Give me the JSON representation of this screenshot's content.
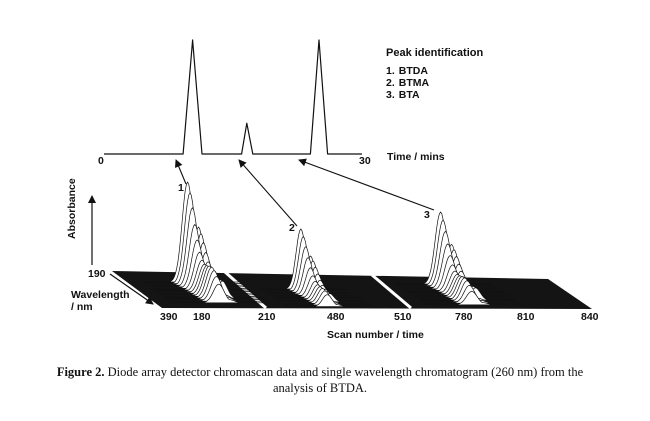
{
  "peak_identification": {
    "heading": "Peak identification",
    "items": [
      {
        "number": "1.",
        "name": "BTDA"
      },
      {
        "number": "2.",
        "name": "BTMA"
      },
      {
        "number": "3.",
        "name": "BTA"
      }
    ]
  },
  "chromatogram": {
    "x_start_label": "0",
    "x_end_label": "30",
    "x_axis_label": "Time / mins"
  },
  "chromascan": {
    "y_axis_label": "Absorbance",
    "wavelength_label_line1": "Wavelength",
    "wavelength_label_line2": "/ nm",
    "wavelength_start": "190",
    "wavelength_end": "390",
    "peak_labels": [
      "1",
      "2",
      "3"
    ],
    "scan_ticks": [
      "180",
      "210",
      "480",
      "510",
      "780",
      "810",
      "840"
    ],
    "x_axis_label": "Scan number / time"
  },
  "caption": {
    "figure_label": "Figure 2.",
    "text": "Diode array detector chromascan data and single wavelength chromatogram (260 nm) from the analysis of BTDA."
  },
  "chart_data": {
    "type": "line",
    "xlabel": "Time / mins",
    "xlim": [
      0,
      30
    ],
    "series": [
      {
        "values": [
          [
            0,
            0
          ],
          [
            9.2,
            0
          ],
          [
            10.3,
            100
          ],
          [
            11.4,
            0
          ],
          [
            16.0,
            0
          ],
          [
            16.6,
            27
          ],
          [
            17.3,
            0
          ],
          [
            24.0,
            0
          ],
          [
            25.0,
            100
          ],
          [
            26.0,
            0
          ],
          [
            30,
            0
          ]
        ]
      }
    ]
  }
}
